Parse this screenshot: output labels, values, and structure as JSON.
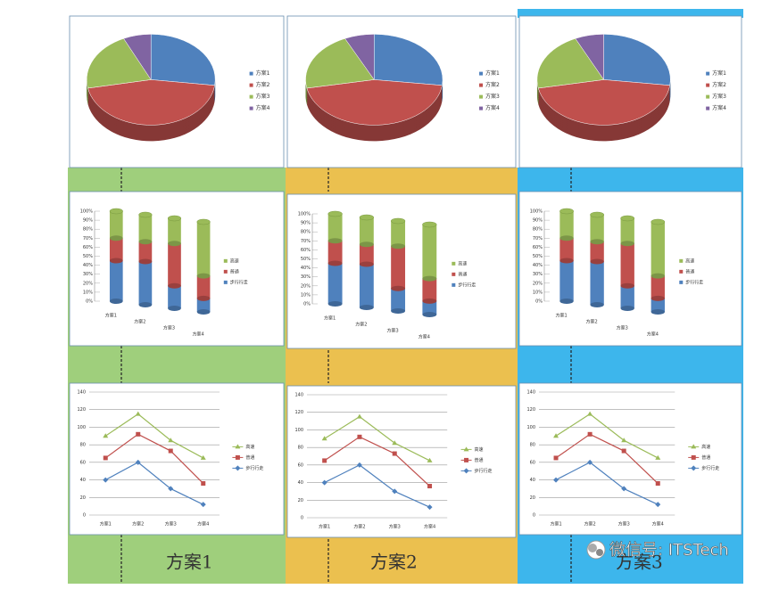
{
  "chart_data": [
    {
      "type": "pie",
      "categories": [
        "方案1",
        "方案2",
        "方案3",
        "方案4"
      ],
      "values": [
        27,
        45,
        21,
        7
      ],
      "colors": [
        "#4f81bd",
        "#c0504d",
        "#9bbb59",
        "#8064a2"
      ]
    },
    {
      "type": "stacked-bar",
      "categories": [
        "方案1",
        "方案2",
        "方案3",
        "方案4"
      ],
      "series": [
        {
          "name": "步行行走",
          "color": "#4f81bd",
          "values": [
            45,
            48,
            25,
            15
          ]
        },
        {
          "name": "普通",
          "color": "#c0504d",
          "values": [
            25,
            22,
            47,
            25
          ]
        },
        {
          "name": "高速",
          "color": "#9bbb59",
          "values": [
            30,
            30,
            28,
            60
          ]
        }
      ],
      "ylim": [
        0,
        100
      ],
      "yticks": [
        {
          "value": 0,
          "label": "0%"
        },
        {
          "value": 10,
          "label": "10%"
        },
        {
          "value": 20,
          "label": "20%"
        },
        {
          "value": 30,
          "label": "30%"
        },
        {
          "value": 40,
          "label": "40%"
        },
        {
          "value": 50,
          "label": "50%"
        },
        {
          "value": 60,
          "label": "60%"
        },
        {
          "value": 70,
          "label": "70%"
        },
        {
          "value": 80,
          "label": "80%"
        },
        {
          "value": 90,
          "label": "90%"
        },
        {
          "value": 100,
          "label": "100%"
        }
      ]
    },
    {
      "type": "line",
      "categories": [
        "方案1",
        "方案2",
        "方案3",
        "方案4"
      ],
      "series": [
        {
          "name": "高速",
          "color": "#9bbb59",
          "marker": "triangle",
          "values": [
            90,
            115,
            85,
            65
          ]
        },
        {
          "name": "普通",
          "color": "#c0504d",
          "marker": "square",
          "values": [
            65,
            92,
            73,
            36
          ]
        },
        {
          "name": "步行行走",
          "color": "#4f81bd",
          "marker": "diamond",
          "values": [
            40,
            60,
            30,
            12
          ]
        }
      ],
      "ylim": [
        0,
        140
      ],
      "yticks": [
        0,
        20,
        40,
        60,
        80,
        100,
        120,
        140
      ],
      "grid": true
    }
  ],
  "panels": [
    {
      "label": "方案1",
      "color": "#9fcf7c"
    },
    {
      "label": "方案2",
      "color": "#ebc04f"
    },
    {
      "label": "方案3",
      "color": "#3db6ec"
    }
  ],
  "watermark": "微信号: ITSTech"
}
